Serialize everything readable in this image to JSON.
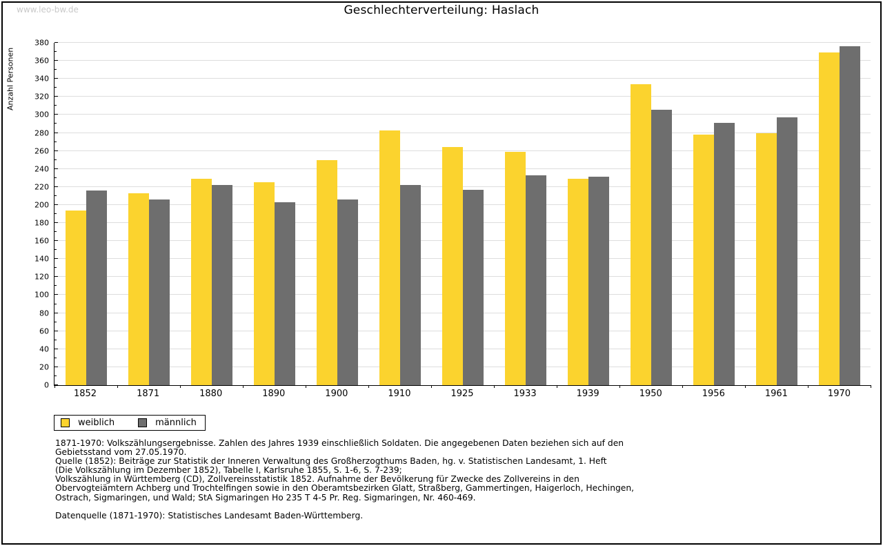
{
  "page": {
    "watermark": "www.leo-bw.de",
    "title": "Geschlechterverteilung: Haslach"
  },
  "chart_data": {
    "type": "bar",
    "title": "Geschlechterverteilung: Haslach",
    "xlabel": "",
    "ylabel": "Anzahl Personen",
    "ylim": [
      0,
      380
    ],
    "y_major_step": 20,
    "y_minor_step": 10,
    "grid": true,
    "legend_position": "bottom-left",
    "categories": [
      "1852",
      "1871",
      "1880",
      "1890",
      "1900",
      "1910",
      "1925",
      "1933",
      "1939",
      "1950",
      "1956",
      "1961",
      "1970"
    ],
    "series": [
      {
        "name": "weiblich",
        "color": "#fbd32e",
        "values": [
          194,
          213,
          229,
          225,
          250,
          283,
          264,
          259,
          229,
          334,
          278,
          280,
          369
        ]
      },
      {
        "name": "männlich",
        "color": "#6e6e6e",
        "values": [
          216,
          206,
          222,
          203,
          206,
          222,
          217,
          233,
          231,
          306,
          291,
          297,
          376
        ]
      }
    ]
  },
  "legend": {
    "items": [
      {
        "label": "weiblich",
        "color": "#fbd32e"
      },
      {
        "label": "männlich",
        "color": "#6e6e6e"
      }
    ]
  },
  "footnotes": {
    "lines": [
      "1871-1970: Volkszählungsergebnisse. Zahlen des Jahres 1939 einschließlich Soldaten. Die angegebenen Daten beziehen sich auf den",
      "Gebietsstand vom 27.05.1970.",
      "Quelle (1852): Beiträge zur Statistik der Inneren Verwaltung des Großherzogthums Baden, hg. v. Statistischen Landesamt, 1. Heft",
      "(Die Volkszählung im Dezember 1852), Tabelle I, Karlsruhe 1855, S. 1-6, S. 7-239;",
      "Volkszählung in Württemberg (CD), Zollvereinsstatistik 1852. Aufnahme der Bevölkerung für Zwecke des Zollvereins in den",
      "Obervogteiämtern Achberg und Trochtelfingen sowie in den Oberamtsbezirken Glatt, Straßberg, Gammertingen, Haigerloch, Hechingen,",
      "Ostrach, Sigmaringen, und Wald; StA Sigmaringen Ho 235 T 4-5 Pr. Reg. Sigmaringen, Nr. 460-469."
    ],
    "datenquelle": "Datenquelle (1871-1970): Statistisches Landesamt Baden-Württemberg."
  },
  "colors": {
    "weiblich": "#fbd32e",
    "maennlich": "#6e6e6e",
    "gridline": "#dddddd",
    "watermark": "#c9c9c9",
    "axis": "#000000",
    "background": "#ffffff"
  }
}
